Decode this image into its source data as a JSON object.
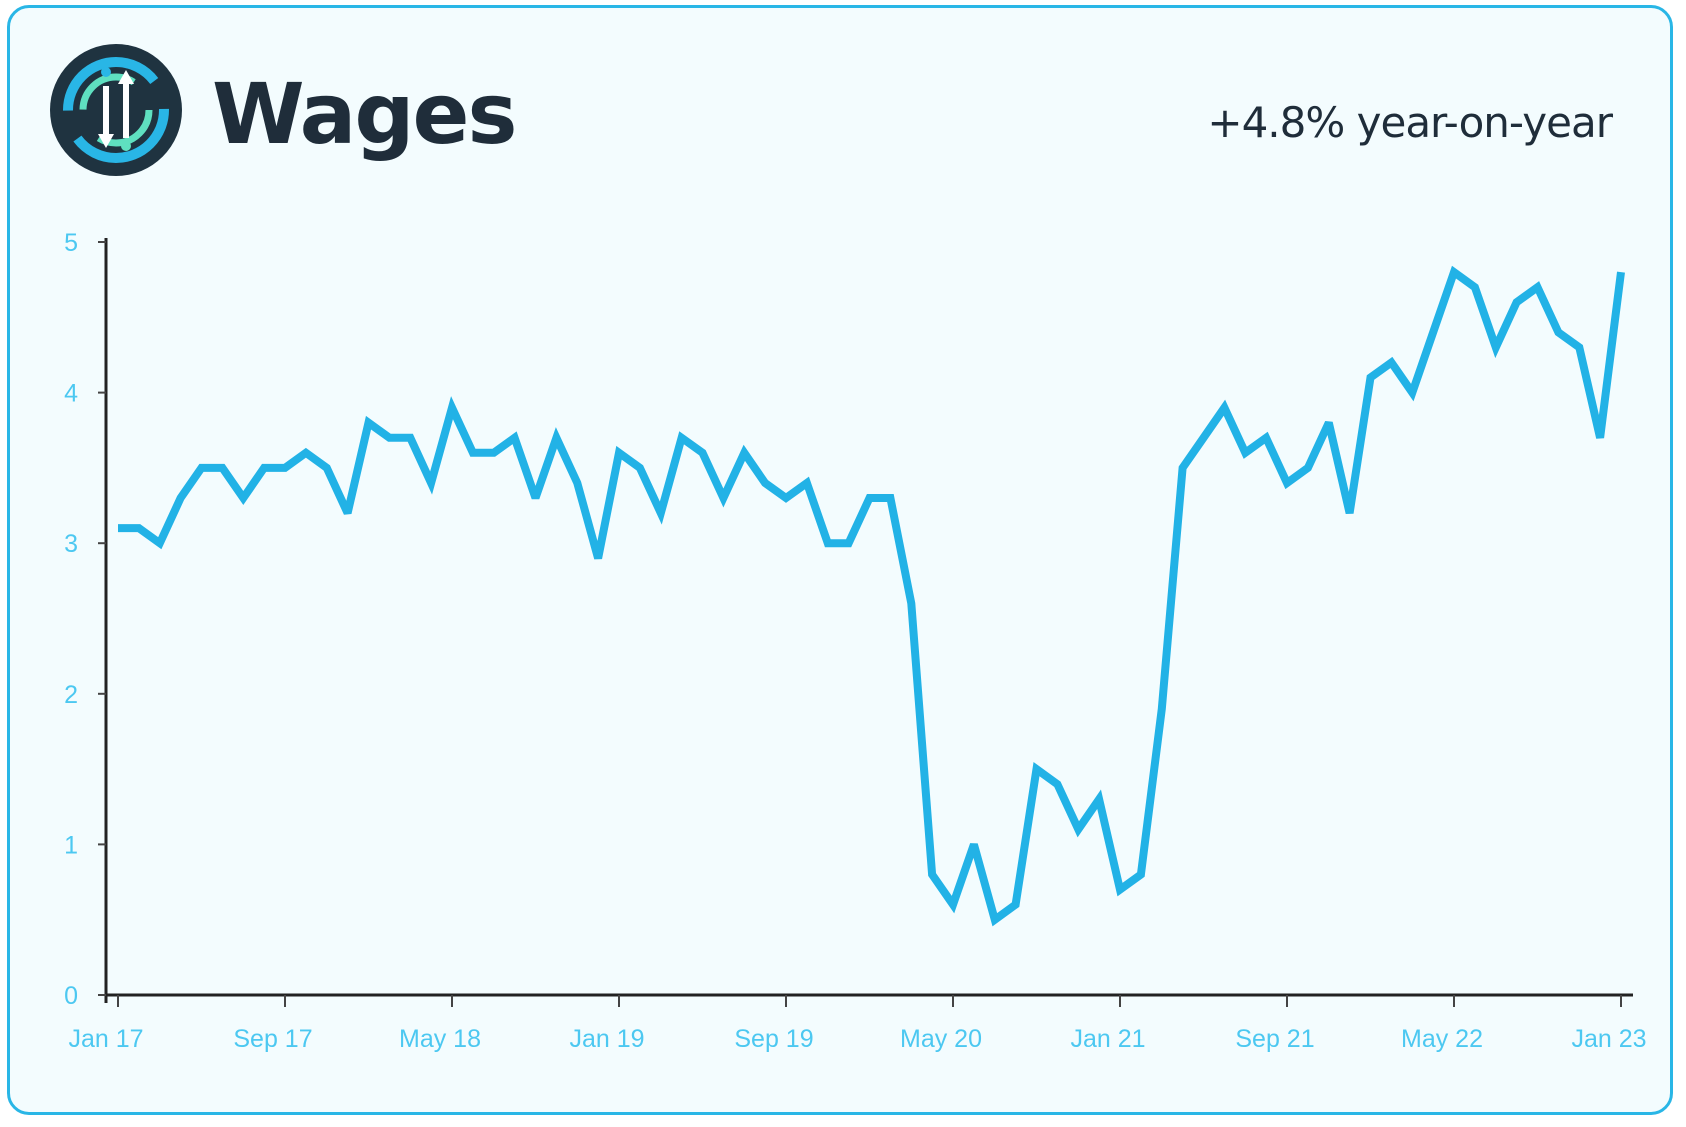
{
  "header": {
    "title": "Wages",
    "subtitle": "+4.8% year-on-year",
    "logo_icon": "info-arrows-icon"
  },
  "colors": {
    "border": "#29b6e6",
    "background": "#f3fcfe",
    "line": "#22b2e6",
    "tick_text": "#4cc8f1",
    "title": "#1f2d3a"
  },
  "chart_data": {
    "type": "line",
    "title": "Wages",
    "subtitle": "+4.8% year-on-year",
    "xlabel": "",
    "ylabel": "",
    "ylim": [
      0,
      5
    ],
    "yticks": [
      "0",
      "1",
      "2",
      "3",
      "4",
      "5"
    ],
    "xticks": [
      "Jan 17",
      "Sep 17",
      "May 18",
      "Jan 19",
      "Sep 19",
      "May 20",
      "Jan 21",
      "Sep 21",
      "May 22",
      "Jan 23"
    ],
    "grid": false,
    "legend": "none",
    "series": [
      {
        "x": [
          "2017-01",
          "2017-02",
          "2017-03",
          "2017-04",
          "2017-05",
          "2017-06",
          "2017-07",
          "2017-08",
          "2017-09",
          "2017-10",
          "2017-11",
          "2017-12",
          "2018-01",
          "2018-02",
          "2018-03",
          "2018-04",
          "2018-05",
          "2018-06",
          "2018-07",
          "2018-08",
          "2018-09",
          "2018-10",
          "2018-11",
          "2018-12",
          "2019-01",
          "2019-02",
          "2019-03",
          "2019-04",
          "2019-05",
          "2019-06",
          "2019-07",
          "2019-08",
          "2019-09",
          "2019-10",
          "2019-11",
          "2019-12",
          "2020-01",
          "2020-02",
          "2020-03",
          "2020-04",
          "2020-05",
          "2020-06",
          "2020-07",
          "2020-08",
          "2020-09",
          "2020-10",
          "2020-11",
          "2020-12",
          "2021-01",
          "2021-02",
          "2021-03",
          "2021-04",
          "2021-05",
          "2021-06",
          "2021-07",
          "2021-08",
          "2021-09",
          "2021-10",
          "2021-11",
          "2021-12",
          "2022-01",
          "2022-02",
          "2022-03",
          "2022-04",
          "2022-05",
          "2022-06",
          "2022-07",
          "2022-08",
          "2022-09",
          "2022-10",
          "2022-11",
          "2022-12",
          "2023-01"
        ],
        "values": [
          3.1,
          3.1,
          3.0,
          3.3,
          3.5,
          3.5,
          3.3,
          3.5,
          3.5,
          3.6,
          3.5,
          3.2,
          3.8,
          3.7,
          3.7,
          3.4,
          3.9,
          3.6,
          3.6,
          3.7,
          3.3,
          3.7,
          3.4,
          2.9,
          3.6,
          3.5,
          3.2,
          3.7,
          3.6,
          3.3,
          3.6,
          3.4,
          3.3,
          3.4,
          3.0,
          3.0,
          3.3,
          3.3,
          2.6,
          0.8,
          0.6,
          1.0,
          0.5,
          0.6,
          1.5,
          1.4,
          1.1,
          1.3,
          0.7,
          0.8,
          1.9,
          3.5,
          3.7,
          3.9,
          3.6,
          3.7,
          3.4,
          3.5,
          3.8,
          3.2,
          4.1,
          4.2,
          4.0,
          4.4,
          4.8,
          4.7,
          4.3,
          4.6,
          4.7,
          4.4,
          4.3,
          3.7,
          4.8
        ]
      }
    ]
  }
}
